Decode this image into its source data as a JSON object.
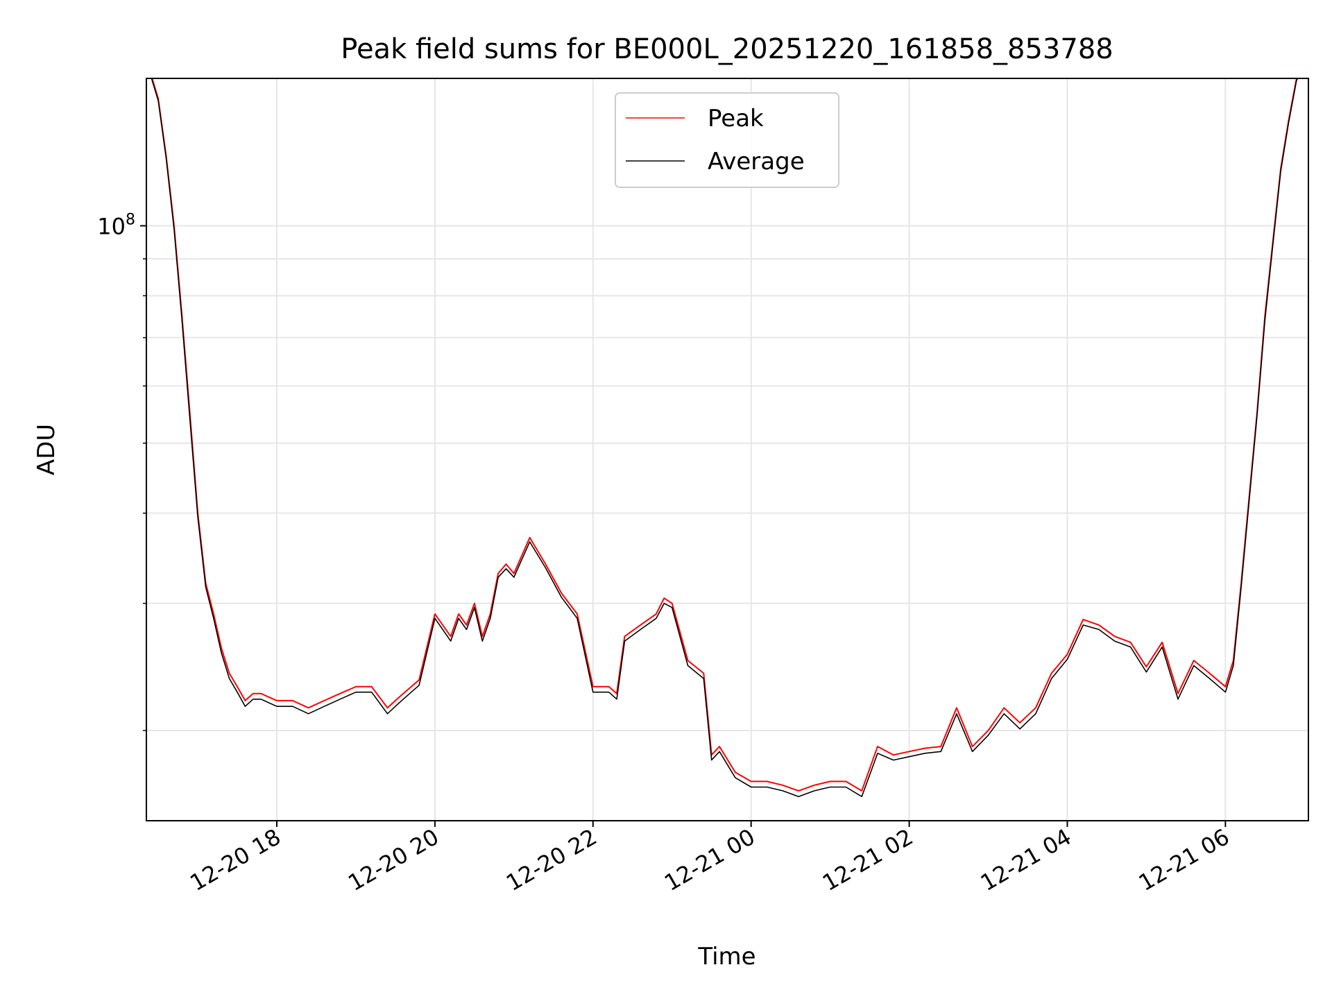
{
  "chart_data": {
    "type": "line",
    "title": "Peak field sums for BE000L_20251220_161858_853788",
    "xlabel": "Time",
    "ylabel": "ADU",
    "yscale": "log",
    "ylim": [
      15000000,
      160000000
    ],
    "xlim_hours": [
      16.35,
      31.05
    ],
    "grid": true,
    "legend_position": "upper center",
    "x_ticks": [
      {
        "hour": 18,
        "label": "12-20 18"
      },
      {
        "hour": 20,
        "label": "12-20 20"
      },
      {
        "hour": 22,
        "label": "12-20 22"
      },
      {
        "hour": 24,
        "label": "12-21 00"
      },
      {
        "hour": 26,
        "label": "12-21 02"
      },
      {
        "hour": 28,
        "label": "12-21 04"
      },
      {
        "hour": 30,
        "label": "12-21 06"
      }
    ],
    "y_major_ticks": [
      {
        "value": 100000000,
        "base": "10",
        "exp": "8"
      }
    ],
    "y_minor_ticks": [
      20000000,
      30000000,
      40000000,
      50000000,
      60000000,
      70000000,
      80000000,
      90000000,
      200000000
    ],
    "series": [
      {
        "name": "Peak",
        "color": "#ff0000",
        "x_hours": [
          16.35,
          16.5,
          16.6,
          16.7,
          16.8,
          16.9,
          17.0,
          17.1,
          17.2,
          17.3,
          17.4,
          17.5,
          17.6,
          17.7,
          17.8,
          18.0,
          18.2,
          18.4,
          18.6,
          18.8,
          19.0,
          19.2,
          19.4,
          19.5,
          19.6,
          19.8,
          20.0,
          20.2,
          20.3,
          20.4,
          20.5,
          20.6,
          20.7,
          20.8,
          20.9,
          21.0,
          21.2,
          21.4,
          21.6,
          21.8,
          22.0,
          22.2,
          22.3,
          22.4,
          22.6,
          22.8,
          22.9,
          23.0,
          23.2,
          23.4,
          23.5,
          23.6,
          23.8,
          24.0,
          24.2,
          24.4,
          24.6,
          24.8,
          25.0,
          25.2,
          25.4,
          25.6,
          25.8,
          26.0,
          26.2,
          26.4,
          26.6,
          26.8,
          27.0,
          27.2,
          27.4,
          27.6,
          27.8,
          28.0,
          28.2,
          28.4,
          28.6,
          28.8,
          29.0,
          29.2,
          29.4,
          29.6,
          29.8,
          30.0,
          30.1,
          30.2,
          30.3,
          30.4,
          30.5,
          30.6,
          30.7,
          30.8,
          30.9,
          31.05
        ],
        "values_M": [
          170,
          150,
          125,
          100,
          75,
          55,
          40,
          32,
          29,
          26,
          24,
          23,
          22,
          22.5,
          22.5,
          22,
          22,
          21.5,
          22,
          22.5,
          23,
          23,
          21.5,
          22,
          22.5,
          23.5,
          29,
          27,
          29,
          28,
          30,
          27,
          29,
          33,
          34,
          33,
          37,
          34,
          31,
          29,
          23,
          23,
          22.5,
          27,
          28,
          29,
          30.5,
          30,
          25,
          24,
          18.5,
          19,
          17.5,
          17,
          17,
          16.8,
          16.5,
          16.8,
          17,
          17,
          16.5,
          19,
          18.5,
          18.7,
          18.9,
          19,
          21.5,
          19,
          20,
          21.5,
          20.5,
          21.5,
          24,
          25.5,
          28.5,
          28,
          27,
          26.5,
          24.5,
          26.5,
          22.5,
          25,
          24,
          23,
          25,
          32,
          42,
          55,
          75,
          95,
          120,
          140,
          160,
          170
        ]
      },
      {
        "name": "Average",
        "color": "#000000",
        "x_hours": [
          16.35,
          16.5,
          16.6,
          16.7,
          16.8,
          16.9,
          17.0,
          17.1,
          17.2,
          17.3,
          17.4,
          17.5,
          17.6,
          17.7,
          17.8,
          18.0,
          18.2,
          18.4,
          18.6,
          18.8,
          19.0,
          19.2,
          19.4,
          19.5,
          19.6,
          19.8,
          20.0,
          20.2,
          20.3,
          20.4,
          20.5,
          20.6,
          20.7,
          20.8,
          20.9,
          21.0,
          21.2,
          21.4,
          21.6,
          21.8,
          22.0,
          22.2,
          22.3,
          22.4,
          22.6,
          22.8,
          22.9,
          23.0,
          23.2,
          23.4,
          23.5,
          23.6,
          23.8,
          24.0,
          24.2,
          24.4,
          24.6,
          24.8,
          25.0,
          25.2,
          25.4,
          25.6,
          25.8,
          26.0,
          26.2,
          26.4,
          26.6,
          26.8,
          27.0,
          27.2,
          27.4,
          27.6,
          27.8,
          28.0,
          28.2,
          28.4,
          28.6,
          28.8,
          29.0,
          29.2,
          29.4,
          29.6,
          29.8,
          30.0,
          30.1,
          30.2,
          30.3,
          30.4,
          30.5,
          30.6,
          30.7,
          30.8,
          30.9,
          31.05
        ],
        "values_M": [
          169,
          149,
          124,
          99,
          74,
          54,
          39.5,
          31.6,
          28.6,
          25.6,
          23.6,
          22.6,
          21.6,
          22.1,
          22.1,
          21.6,
          21.6,
          21.1,
          21.6,
          22.1,
          22.6,
          22.6,
          21.1,
          21.6,
          22.1,
          23.1,
          28.6,
          26.6,
          28.6,
          27.6,
          29.6,
          26.6,
          28.6,
          32.6,
          33.5,
          32.6,
          36.5,
          33.6,
          30.6,
          28.6,
          22.6,
          22.6,
          22.1,
          26.6,
          27.6,
          28.6,
          30,
          29.6,
          24.6,
          23.6,
          18.2,
          18.7,
          17.2,
          16.7,
          16.7,
          16.5,
          16.2,
          16.5,
          16.7,
          16.7,
          16.2,
          18.6,
          18.2,
          18.4,
          18.6,
          18.7,
          21.1,
          18.7,
          19.7,
          21.1,
          20.1,
          21.1,
          23.6,
          25.1,
          28,
          27.6,
          26.6,
          26.1,
          24.1,
          26.1,
          22.1,
          24.6,
          23.6,
          22.6,
          24.6,
          31.6,
          41.5,
          54.5,
          74,
          94,
          119,
          139,
          159,
          169
        ]
      }
    ]
  }
}
